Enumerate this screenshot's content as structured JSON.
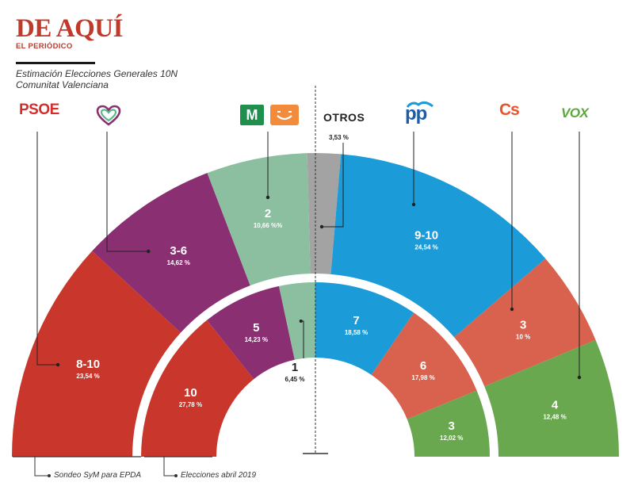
{
  "header": {
    "brand": "DE AQUÍ",
    "brand_sub": "EL PERIÓDICO",
    "subtitle_line1": "Estimación Elecciones Generales 10N",
    "subtitle_line2": "Comunitat Valenciana"
  },
  "parties": {
    "psoe": "PSOE",
    "compromis_icon": "heart-logo-icon",
    "mas_pais": "M",
    "podemos_icon": "smile-logo-icon",
    "otros": "OTROS",
    "otros_pct": "3,53 %",
    "pp": "pp",
    "cs": "Cs",
    "vox": "VOX"
  },
  "colors": {
    "psoe": "#c9372c",
    "compromis": "#8a2f72",
    "podemos": "#8bbf9f",
    "otros": "#a3a3a3",
    "pp": "#1b9bd7",
    "cs": "#d9624f",
    "vox": "#6aa84f",
    "mas_pais": "#1f8f4e",
    "podemos_logo": "#f28b3c"
  },
  "legend": {
    "outer": "Sondeo SyM para EPDA",
    "inner": "Elecciones abril 2019"
  },
  "chart_data": [
    {
      "type": "pie",
      "title": "Sondeo SyM para EPDA",
      "categories": [
        "PSOE",
        "Compromís",
        "Unidas Podemos / Más País",
        "OTROS",
        "PP",
        "Cs",
        "VOX"
      ],
      "seats": [
        "8-10",
        "3-6",
        "2",
        "",
        "9-10",
        "3",
        "4"
      ],
      "pct_labels": [
        "23,54 %",
        "14,62 %",
        "10,66 %%",
        "",
        "24,54 %",
        "10 %",
        "12,48 %"
      ],
      "values": [
        23.54,
        14.62,
        10.66,
        3.53,
        24.54,
        10.0,
        12.48
      ]
    },
    {
      "type": "pie",
      "title": "Elecciones abril 2019",
      "categories": [
        "PSOE",
        "Compromís",
        "Unidas Podemos",
        "PP",
        "Cs",
        "VOX"
      ],
      "seats": [
        "10",
        "5",
        "1",
        "7",
        "6",
        "3"
      ],
      "pct_labels": [
        "27,78 %",
        "14,23 %",
        "6,45 %",
        "18,58 %",
        "17,98 %",
        "12,02 %"
      ],
      "values": [
        27.78,
        14.23,
        6.45,
        18.58,
        17.98,
        12.02
      ]
    }
  ]
}
